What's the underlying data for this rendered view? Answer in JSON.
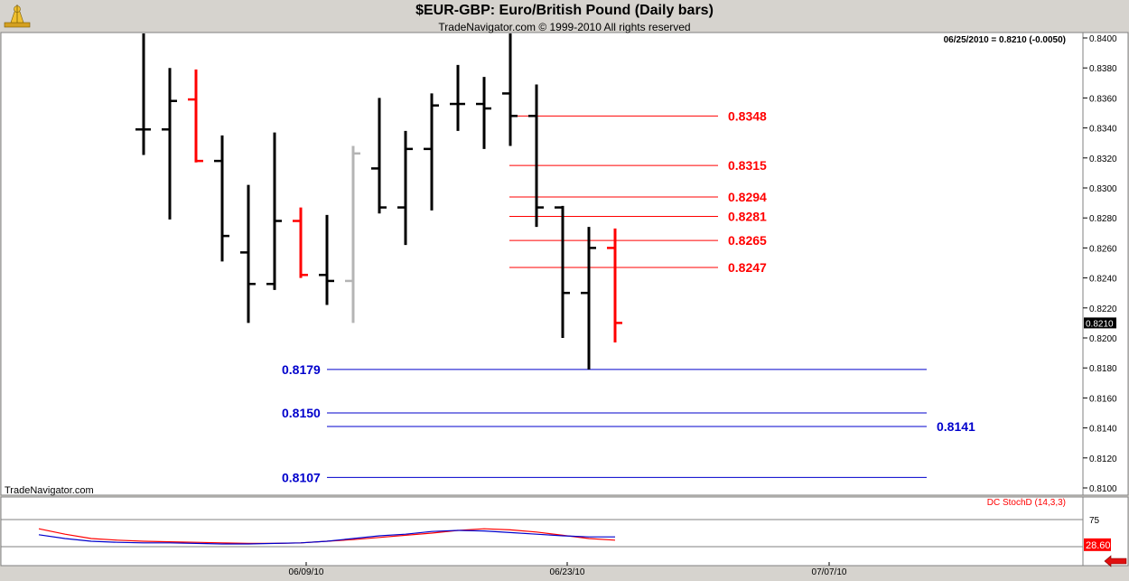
{
  "header": {
    "title": "$EUR-GBP:  Euro/British Pound  (Daily bars)",
    "subtitle": "TradeNavigator.com © 1999-2010 All rights reserved",
    "last_quote": "06/25/2010 = 0.8210 (-0.0050)",
    "watermark": "TradeNavigator.com"
  },
  "colors": {
    "up_bar": "#000000",
    "down_bar": "#ff0000",
    "neutral_bar": "#b4b4b4",
    "resistance": "#ff0000",
    "support": "#0000cc",
    "stoch_k": "#0000cc",
    "stoch_d": "#ff0000",
    "price_tag_bg": "#000000",
    "stoch_tag_bg": "#ff0000"
  },
  "chart_data": {
    "type": "ohlc",
    "title": "$EUR-GBP:  Euro/British Pound  (Daily bars)",
    "ylim": [
      0.8095,
      0.8405
    ],
    "y_ticks": [
      "0.8400",
      "0.8380",
      "0.8360",
      "0.8340",
      "0.8320",
      "0.8300",
      "0.8280",
      "0.8260",
      "0.8240",
      "0.8220",
      "0.8200",
      "0.8180",
      "0.8160",
      "0.8140",
      "0.8120",
      "0.8100"
    ],
    "x_tick_labels": [
      "06/09/10",
      "06/23/10",
      "07/07/10"
    ],
    "current_price_label": "0.8210",
    "bars": [
      {
        "i": 0,
        "o": 0.8339,
        "h": 0.8403,
        "l": 0.8322,
        "c": 0.8339,
        "col": "up"
      },
      {
        "i": 1,
        "o": 0.8339,
        "h": 0.838,
        "l": 0.8279,
        "c": 0.8358,
        "col": "up"
      },
      {
        "i": 2,
        "o": 0.8359,
        "h": 0.8379,
        "l": 0.8317,
        "c": 0.8318,
        "col": "down"
      },
      {
        "i": 3,
        "o": 0.8318,
        "h": 0.8335,
        "l": 0.8251,
        "c": 0.8268,
        "col": "up"
      },
      {
        "i": 4,
        "o": 0.8257,
        "h": 0.8302,
        "l": 0.821,
        "c": 0.8236,
        "col": "up"
      },
      {
        "i": 5,
        "o": 0.8236,
        "h": 0.8337,
        "l": 0.8232,
        "c": 0.8278,
        "col": "up"
      },
      {
        "i": 6,
        "o": 0.8278,
        "h": 0.8287,
        "l": 0.824,
        "c": 0.8242,
        "col": "down"
      },
      {
        "i": 7,
        "o": 0.8242,
        "h": 0.8282,
        "l": 0.8222,
        "c": 0.8238,
        "col": "up"
      },
      {
        "i": 8,
        "o": 0.8238,
        "h": 0.8328,
        "l": 0.821,
        "c": 0.8323,
        "col": "neutral"
      },
      {
        "i": 9,
        "o": 0.8313,
        "h": 0.836,
        "l": 0.8283,
        "c": 0.8287,
        "col": "up"
      },
      {
        "i": 10,
        "o": 0.8287,
        "h": 0.8338,
        "l": 0.8262,
        "c": 0.8326,
        "col": "up"
      },
      {
        "i": 11,
        "o": 0.8326,
        "h": 0.8363,
        "l": 0.8285,
        "c": 0.8355,
        "col": "up"
      },
      {
        "i": 12,
        "o": 0.8356,
        "h": 0.8382,
        "l": 0.8338,
        "c": 0.8356,
        "col": "up"
      },
      {
        "i": 13,
        "o": 0.8356,
        "h": 0.8374,
        "l": 0.8326,
        "c": 0.8353,
        "col": "up"
      },
      {
        "i": 14,
        "o": 0.8363,
        "h": 0.8403,
        "l": 0.8328,
        "c": 0.8348,
        "col": "up"
      },
      {
        "i": 15,
        "o": 0.8348,
        "h": 0.8369,
        "l": 0.8274,
        "c": 0.8287,
        "col": "up"
      },
      {
        "i": 16,
        "o": 0.8287,
        "h": 0.8288,
        "l": 0.82,
        "c": 0.823,
        "col": "up"
      },
      {
        "i": 17,
        "o": 0.823,
        "h": 0.8274,
        "l": 0.8179,
        "c": 0.826,
        "col": "up"
      },
      {
        "i": 18,
        "o": 0.826,
        "h": 0.8273,
        "l": 0.8197,
        "c": 0.821,
        "col": "down"
      }
    ],
    "resistance_levels": [
      "0.8348",
      "0.8315",
      "0.8294",
      "0.8281",
      "0.8265",
      "0.8247"
    ],
    "support_levels": [
      "0.8179",
      "0.8150",
      "0.8141",
      "0.8107"
    ],
    "stochastic": {
      "name": "DC StochD (14,3,3)",
      "ylim": [
        0,
        100
      ],
      "levels": [
        "75"
      ],
      "current": "28.60",
      "k": [
        47,
        40,
        35,
        33,
        32,
        32,
        31,
        30,
        30,
        31,
        32,
        35,
        40,
        45,
        48,
        53,
        55,
        54,
        51,
        48,
        45,
        43,
        43
      ],
      "d": [
        58,
        48,
        40,
        37,
        35,
        34,
        33,
        32,
        31,
        31,
        32,
        35,
        38,
        42,
        46,
        50,
        55,
        58,
        56,
        52,
        46,
        40,
        37
      ]
    }
  }
}
